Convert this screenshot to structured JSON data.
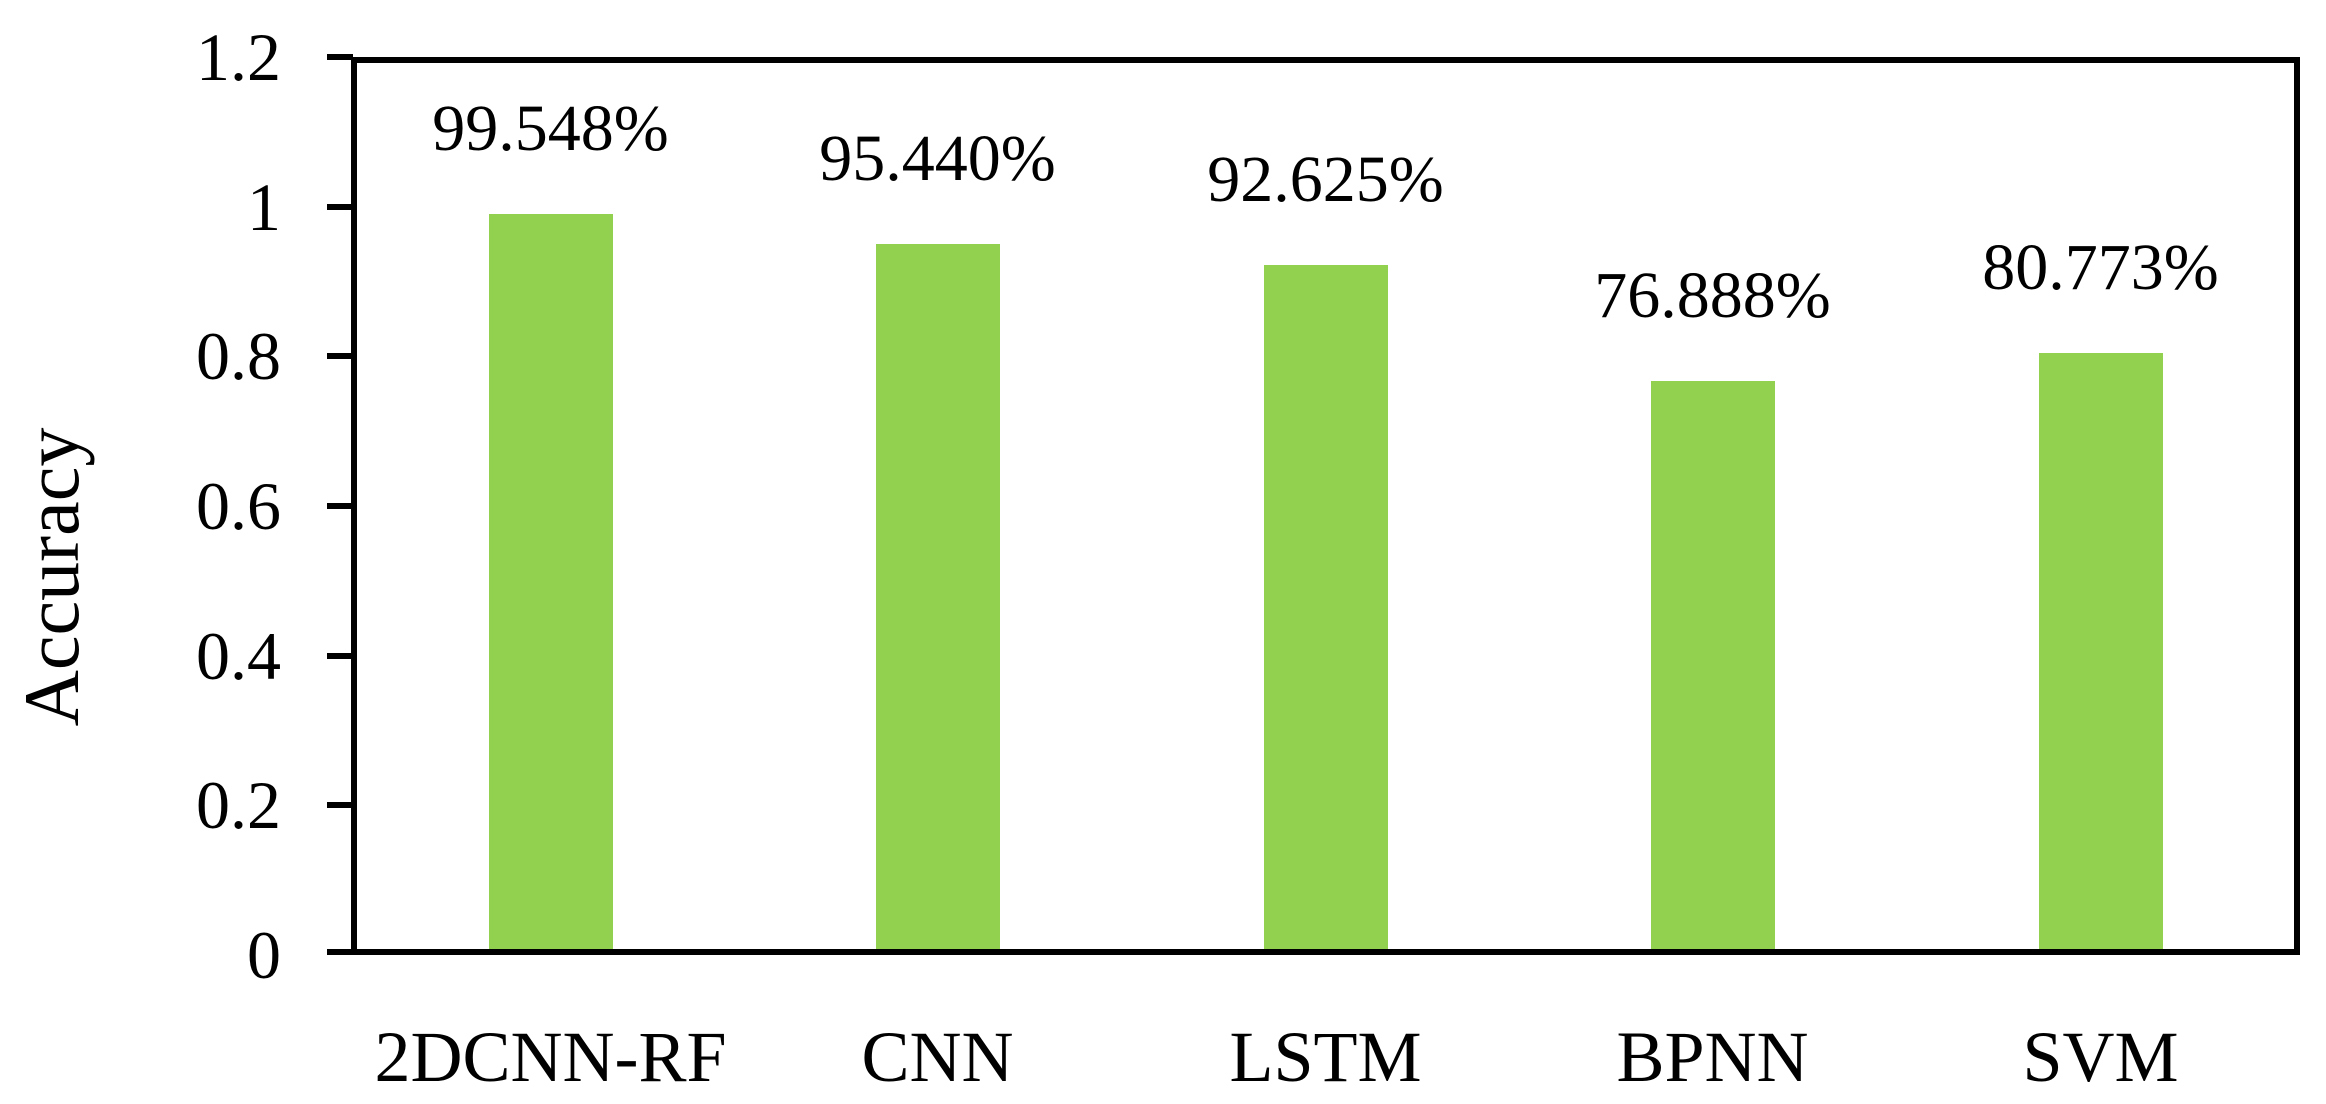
{
  "figure": {
    "background": "#ffffff",
    "text_color": "#000000"
  },
  "chart_data": {
    "type": "bar",
    "title": "",
    "xlabel": "",
    "ylabel": "Accuracy",
    "categories": [
      "2DCNN-RF",
      "CNN",
      "LSTM",
      "BPNN",
      "SVM"
    ],
    "values": [
      0.99548,
      0.9544,
      0.92625,
      0.76888,
      0.80773
    ],
    "bar_labels": [
      "99.548%",
      "95.440%",
      "92.625%",
      "76.888%",
      "80.773%"
    ],
    "ylim": [
      0,
      1.2
    ],
    "yticks": [
      1.2,
      1.0,
      0.8,
      0.6,
      0.4,
      0.2,
      0
    ],
    "ytick_labels": [
      "1.2",
      "1",
      "0.8",
      "0.6",
      "0.4",
      "0.2",
      "0"
    ],
    "grid": false,
    "legend": false,
    "bar_color": "#92D050",
    "axis_color": "#000000"
  }
}
